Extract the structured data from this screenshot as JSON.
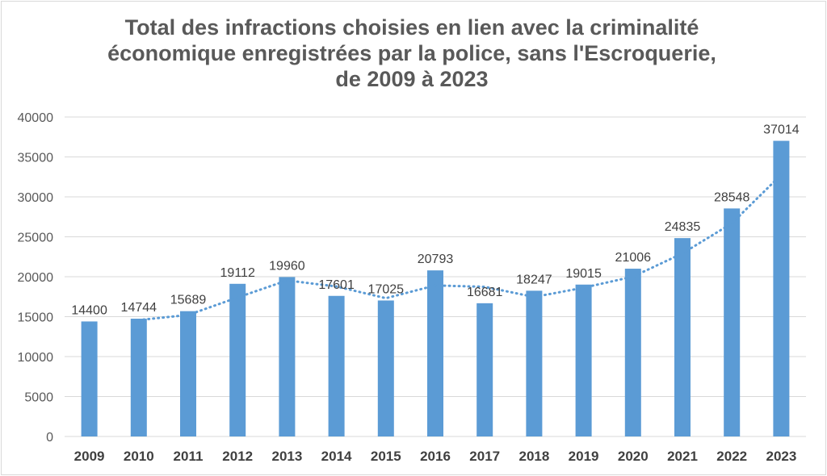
{
  "chart_data": {
    "type": "bar",
    "title_lines": [
      "Total des infractions choisies en lien avec la criminalité",
      "économique enregistrées par la police, sans l'Escroquerie,",
      "de 2009 à 2023"
    ],
    "categories": [
      "2009",
      "2010",
      "2011",
      "2012",
      "2013",
      "2014",
      "2015",
      "2016",
      "2017",
      "2018",
      "2019",
      "2020",
      "2021",
      "2022",
      "2023"
    ],
    "values": [
      14400,
      14744,
      15689,
      19112,
      19960,
      17601,
      17025,
      20793,
      16681,
      18247,
      19015,
      21006,
      24835,
      28548,
      37014
    ],
    "data_labels": [
      "14400",
      "14744",
      "15689",
      "19112",
      "19960",
      "17601",
      "17025",
      "20793",
      "16681",
      "18247",
      "19015",
      "21006",
      "24835",
      "28548",
      "37014"
    ],
    "ylim": [
      0,
      40000
    ],
    "yticks": [
      0,
      5000,
      10000,
      15000,
      20000,
      25000,
      30000,
      35000,
      40000
    ],
    "ytick_labels": [
      "0",
      "5000",
      "10000",
      "15000",
      "20000",
      "25000",
      "30000",
      "35000",
      "40000"
    ],
    "grid": true,
    "trendline": {
      "type": "moving-average",
      "period": 2,
      "style": "dotted"
    },
    "colors": {
      "bar": "#5b9bd5",
      "trend": "#5b9bd5",
      "grid": "#d9d9d9"
    }
  }
}
